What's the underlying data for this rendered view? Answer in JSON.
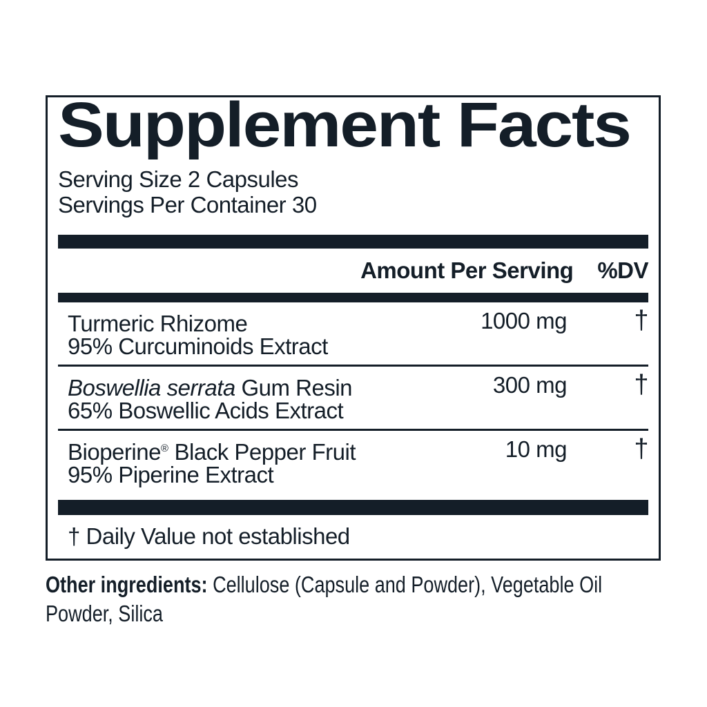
{
  "panel": {
    "title": "Supplement Facts",
    "serving_size": "Serving Size 2 Capsules",
    "servings_per_container": "Servings Per Container 30",
    "header": {
      "amount_label": "Amount Per Serving",
      "dv_label": "%DV"
    },
    "rows": [
      {
        "line1_pre": "Turmeric Rhizome",
        "line1_italic": "",
        "line1_sup": "",
        "line1_post": "",
        "line2": "95% Curcuminoids Extract",
        "amount": "1000 mg",
        "dv": "†"
      },
      {
        "line1_pre": "",
        "line1_italic": "Boswellia serrata",
        "line1_sup": "",
        "line1_post": " Gum Resin",
        "line2": "65% Boswellic Acids Extract",
        "amount": "300 mg",
        "dv": "†"
      },
      {
        "line1_pre": "Bioperine",
        "line1_italic": "",
        "line1_sup": "®",
        "line1_post": " Black Pepper Fruit",
        "line2": "95% Piperine Extract",
        "amount": "10 mg",
        "dv": "†"
      }
    ],
    "footnote": "† Daily Value not established"
  },
  "other_ingredients": {
    "label": "Other ingredients:",
    "line1_rest": " Cellulose (Capsule and Powder), Vegetable Oil",
    "line2": "Powder, Silica",
    "full_text": "Cellulose (Capsule and Powder), Vegetable Oil Powder, Silica"
  },
  "colors": {
    "ink": "#141e28",
    "background": "#ffffff"
  }
}
